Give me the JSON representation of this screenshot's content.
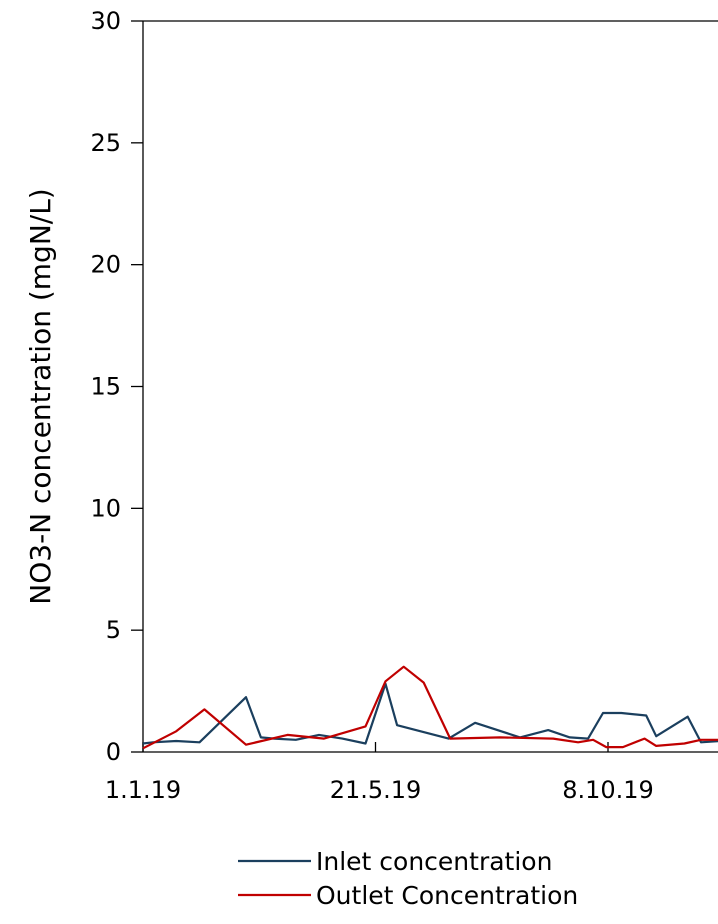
{
  "chart_data": {
    "type": "line",
    "title": "",
    "xlabel": "",
    "ylabel": "NO3-N concentration (mgN/L)",
    "ylim": [
      0,
      30
    ],
    "yticks": [
      0,
      5,
      10,
      15,
      20,
      25,
      30
    ],
    "xticks": [
      "1.1.19",
      "21.5.19",
      "8.10.19"
    ],
    "grid": false,
    "legend_position": "bottom",
    "series": [
      {
        "name": "Inlet concentration",
        "color": "#1b3f5e",
        "points": [
          [
            "1.1.19",
            0.35
          ],
          [
            "7.1.19",
            0.4
          ],
          [
            "21.1.19",
            0.45
          ],
          [
            "4.2.19",
            0.4
          ],
          [
            "4.3.19",
            2.25
          ],
          [
            "13.3.19",
            0.6
          ],
          [
            "21.3.19",
            0.55
          ],
          [
            "3.4.19",
            0.5
          ],
          [
            "17.4.19",
            0.7
          ],
          [
            "1.5.19",
            0.55
          ],
          [
            "15.5.19",
            0.35
          ],
          [
            "27.5.19",
            2.8
          ],
          [
            "3.6.19",
            1.1
          ],
          [
            "4.7.19",
            0.55
          ],
          [
            "20.7.19",
            1.2
          ],
          [
            "16.8.19",
            0.6
          ],
          [
            "2.9.19",
            0.9
          ],
          [
            "15.9.19",
            0.6
          ],
          [
            "26.9.19",
            0.55
          ],
          [
            "5.10.19",
            1.6
          ],
          [
            "16.10.19",
            1.6
          ],
          [
            "31.10.19",
            1.5
          ],
          [
            "6.11.19",
            0.65
          ],
          [
            "25.11.19",
            1.45
          ],
          [
            "3.12.19",
            0.4
          ],
          [
            "15.12.19",
            0.45
          ]
        ]
      },
      {
        "name": "Outlet Concentration",
        "color": "#c00000",
        "points": [
          [
            "1.1.19",
            0.15
          ],
          [
            "21.1.19",
            0.85
          ],
          [
            "7.2.19",
            1.75
          ],
          [
            "4.3.19",
            0.3
          ],
          [
            "29.3.19",
            0.7
          ],
          [
            "20.4.19",
            0.55
          ],
          [
            "15.5.19",
            1.05
          ],
          [
            "27.5.19",
            2.9
          ],
          [
            "7.6.19",
            3.5
          ],
          [
            "19.6.19",
            2.85
          ],
          [
            "5.7.19",
            0.55
          ],
          [
            "4.8.19",
            0.6
          ],
          [
            "5.9.19",
            0.55
          ],
          [
            "20.9.19",
            0.4
          ],
          [
            "29.9.19",
            0.5
          ],
          [
            "7.10.19",
            0.2
          ],
          [
            "17.10.19",
            0.2
          ],
          [
            "30.10.19",
            0.55
          ],
          [
            "6.11.19",
            0.25
          ],
          [
            "23.11.19",
            0.35
          ],
          [
            "3.12.19",
            0.5
          ],
          [
            "15.12.19",
            0.5
          ]
        ]
      }
    ]
  }
}
